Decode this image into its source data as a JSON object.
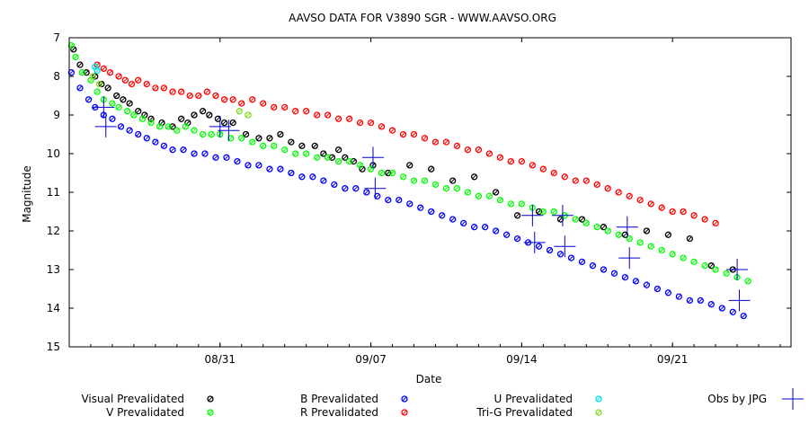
{
  "chart_data": {
    "type": "scatter",
    "title": "AAVSO DATA FOR V3890 SGR - WWW.AAVSO.ORG",
    "xlabel": "Date",
    "ylabel": "Magnitude",
    "x_unit": "day-of-year 2019",
    "xlim": [
      236,
      269.5
    ],
    "ylim": [
      7,
      15
    ],
    "y_inverted": true,
    "grid": false,
    "legend_position": "bottom",
    "x_ticks": [
      {
        "value": 243,
        "label": "08/31"
      },
      {
        "value": 250,
        "label": "09/07"
      },
      {
        "value": 257,
        "label": "09/14"
      },
      {
        "value": 264,
        "label": "09/21"
      }
    ],
    "y_ticks": [
      7,
      8,
      9,
      10,
      11,
      12,
      13,
      14,
      15
    ],
    "series": [
      {
        "name": "Visual Prevalidated",
        "color": "#000000",
        "marker": "circle",
        "points": [
          [
            236.2,
            7.3
          ],
          [
            236.5,
            7.7
          ],
          [
            236.8,
            7.9
          ],
          [
            237.2,
            8.0
          ],
          [
            237.5,
            8.2
          ],
          [
            237.8,
            8.3
          ],
          [
            238.2,
            8.5
          ],
          [
            238.5,
            8.6
          ],
          [
            238.8,
            8.7
          ],
          [
            239.2,
            8.9
          ],
          [
            239.5,
            9.0
          ],
          [
            239.8,
            9.1
          ],
          [
            240.3,
            9.2
          ],
          [
            240.8,
            9.3
          ],
          [
            241.2,
            9.1
          ],
          [
            241.5,
            9.2
          ],
          [
            241.8,
            9.0
          ],
          [
            242.2,
            8.9
          ],
          [
            242.5,
            9.0
          ],
          [
            242.9,
            9.1
          ],
          [
            243.2,
            9.2
          ],
          [
            243.6,
            9.2
          ],
          [
            244.2,
            9.5
          ],
          [
            244.8,
            9.6
          ],
          [
            245.3,
            9.6
          ],
          [
            245.8,
            9.5
          ],
          [
            246.3,
            9.7
          ],
          [
            246.8,
            9.8
          ],
          [
            247.4,
            9.8
          ],
          [
            247.8,
            10.0
          ],
          [
            248.2,
            10.1
          ],
          [
            248.5,
            9.9
          ],
          [
            248.8,
            10.1
          ],
          [
            249.2,
            10.2
          ],
          [
            249.6,
            10.4
          ],
          [
            250.1,
            10.3
          ],
          [
            250.8,
            10.5
          ],
          [
            251.8,
            10.3
          ],
          [
            252.8,
            10.4
          ],
          [
            253.8,
            10.7
          ],
          [
            254.8,
            10.6
          ],
          [
            255.8,
            11.0
          ],
          [
            256.8,
            11.6
          ],
          [
            257.8,
            11.5
          ],
          [
            258.8,
            11.7
          ],
          [
            259.8,
            11.7
          ],
          [
            260.8,
            11.9
          ],
          [
            261.8,
            12.1
          ],
          [
            262.8,
            12.0
          ],
          [
            263.8,
            12.1
          ],
          [
            264.8,
            12.2
          ],
          [
            265.8,
            12.9
          ],
          [
            266.8,
            13.0
          ]
        ]
      },
      {
        "name": "V Prevalidated",
        "color": "#00ff00",
        "marker": "circle",
        "points": [
          [
            236.1,
            7.2
          ],
          [
            236.3,
            7.5
          ],
          [
            236.6,
            7.9
          ],
          [
            237.0,
            8.1
          ],
          [
            237.3,
            8.4
          ],
          [
            237.6,
            8.6
          ],
          [
            238.0,
            8.7
          ],
          [
            238.3,
            8.8
          ],
          [
            238.7,
            8.9
          ],
          [
            239.0,
            9.0
          ],
          [
            239.4,
            9.1
          ],
          [
            239.8,
            9.2
          ],
          [
            240.2,
            9.3
          ],
          [
            240.6,
            9.3
          ],
          [
            241.0,
            9.4
          ],
          [
            241.4,
            9.3
          ],
          [
            241.8,
            9.4
          ],
          [
            242.2,
            9.5
          ],
          [
            242.6,
            9.5
          ],
          [
            243.0,
            9.5
          ],
          [
            243.5,
            9.6
          ],
          [
            244.0,
            9.6
          ],
          [
            244.5,
            9.7
          ],
          [
            245.0,
            9.8
          ],
          [
            245.5,
            9.8
          ],
          [
            246.0,
            9.9
          ],
          [
            246.5,
            10.0
          ],
          [
            247.0,
            10.0
          ],
          [
            247.5,
            10.1
          ],
          [
            248.0,
            10.1
          ],
          [
            248.5,
            10.2
          ],
          [
            249.0,
            10.2
          ],
          [
            249.5,
            10.3
          ],
          [
            250.0,
            10.4
          ],
          [
            250.5,
            10.5
          ],
          [
            251.0,
            10.5
          ],
          [
            251.5,
            10.6
          ],
          [
            252.0,
            10.7
          ],
          [
            252.5,
            10.7
          ],
          [
            253.0,
            10.8
          ],
          [
            253.5,
            10.9
          ],
          [
            254.0,
            10.9
          ],
          [
            254.5,
            11.0
          ],
          [
            255.0,
            11.1
          ],
          [
            255.5,
            11.1
          ],
          [
            256.0,
            11.2
          ],
          [
            256.5,
            11.3
          ],
          [
            257.0,
            11.3
          ],
          [
            257.5,
            11.4
          ],
          [
            258.0,
            11.5
          ],
          [
            258.5,
            11.5
          ],
          [
            259.0,
            11.6
          ],
          [
            259.5,
            11.7
          ],
          [
            260.0,
            11.8
          ],
          [
            260.5,
            11.9
          ],
          [
            261.0,
            12.0
          ],
          [
            261.5,
            12.1
          ],
          [
            262.0,
            12.2
          ],
          [
            262.5,
            12.3
          ],
          [
            263.0,
            12.4
          ],
          [
            263.5,
            12.5
          ],
          [
            264.0,
            12.6
          ],
          [
            264.5,
            12.7
          ],
          [
            265.0,
            12.8
          ],
          [
            265.5,
            12.9
          ],
          [
            266.0,
            13.0
          ],
          [
            266.5,
            13.1
          ],
          [
            267.0,
            13.2
          ],
          [
            267.5,
            13.3
          ]
        ]
      },
      {
        "name": "B Prevalidated",
        "color": "#0000ff",
        "marker": "circle",
        "points": [
          [
            236.1,
            7.9
          ],
          [
            236.5,
            8.3
          ],
          [
            236.9,
            8.6
          ],
          [
            237.2,
            8.8
          ],
          [
            237.6,
            9.0
          ],
          [
            238.0,
            9.1
          ],
          [
            238.4,
            9.3
          ],
          [
            238.8,
            9.4
          ],
          [
            239.2,
            9.5
          ],
          [
            239.6,
            9.6
          ],
          [
            240.0,
            9.7
          ],
          [
            240.4,
            9.8
          ],
          [
            240.8,
            9.9
          ],
          [
            241.3,
            9.9
          ],
          [
            241.8,
            10.0
          ],
          [
            242.3,
            10.0
          ],
          [
            242.8,
            10.1
          ],
          [
            243.3,
            10.1
          ],
          [
            243.8,
            10.2
          ],
          [
            244.3,
            10.3
          ],
          [
            244.8,
            10.3
          ],
          [
            245.3,
            10.4
          ],
          [
            245.8,
            10.4
          ],
          [
            246.3,
            10.5
          ],
          [
            246.8,
            10.6
          ],
          [
            247.3,
            10.6
          ],
          [
            247.8,
            10.7
          ],
          [
            248.3,
            10.8
          ],
          [
            248.8,
            10.9
          ],
          [
            249.3,
            10.9
          ],
          [
            249.8,
            11.0
          ],
          [
            250.3,
            11.1
          ],
          [
            250.8,
            11.2
          ],
          [
            251.3,
            11.2
          ],
          [
            251.8,
            11.3
          ],
          [
            252.3,
            11.4
          ],
          [
            252.8,
            11.5
          ],
          [
            253.3,
            11.6
          ],
          [
            253.8,
            11.7
          ],
          [
            254.3,
            11.8
          ],
          [
            254.8,
            11.9
          ],
          [
            255.3,
            11.9
          ],
          [
            255.8,
            12.0
          ],
          [
            256.3,
            12.1
          ],
          [
            256.8,
            12.2
          ],
          [
            257.3,
            12.3
          ],
          [
            257.8,
            12.4
          ],
          [
            258.3,
            12.5
          ],
          [
            258.8,
            12.6
          ],
          [
            259.3,
            12.7
          ],
          [
            259.8,
            12.8
          ],
          [
            260.3,
            12.9
          ],
          [
            260.8,
            13.0
          ],
          [
            261.3,
            13.1
          ],
          [
            261.8,
            13.2
          ],
          [
            262.3,
            13.3
          ],
          [
            262.8,
            13.4
          ],
          [
            263.3,
            13.5
          ],
          [
            263.8,
            13.6
          ],
          [
            264.3,
            13.7
          ],
          [
            264.8,
            13.8
          ],
          [
            265.3,
            13.8
          ],
          [
            265.8,
            13.9
          ],
          [
            266.3,
            14.0
          ],
          [
            266.8,
            14.1
          ],
          [
            267.3,
            14.2
          ]
        ]
      },
      {
        "name": "R Prevalidated",
        "color": "#ff0000",
        "marker": "circle",
        "points": [
          [
            237.3,
            7.7
          ],
          [
            237.6,
            7.8
          ],
          [
            237.9,
            7.9
          ],
          [
            238.3,
            8.0
          ],
          [
            238.6,
            8.1
          ],
          [
            238.9,
            8.2
          ],
          [
            239.2,
            8.1
          ],
          [
            239.6,
            8.2
          ],
          [
            240.0,
            8.3
          ],
          [
            240.4,
            8.3
          ],
          [
            240.8,
            8.4
          ],
          [
            241.2,
            8.4
          ],
          [
            241.6,
            8.5
          ],
          [
            242.0,
            8.5
          ],
          [
            242.4,
            8.4
          ],
          [
            242.8,
            8.5
          ],
          [
            243.2,
            8.6
          ],
          [
            243.6,
            8.6
          ],
          [
            244.0,
            8.7
          ],
          [
            244.5,
            8.6
          ],
          [
            245.0,
            8.7
          ],
          [
            245.5,
            8.8
          ],
          [
            246.0,
            8.8
          ],
          [
            246.5,
            8.9
          ],
          [
            247.0,
            8.9
          ],
          [
            247.5,
            9.0
          ],
          [
            248.0,
            9.0
          ],
          [
            248.5,
            9.1
          ],
          [
            249.0,
            9.1
          ],
          [
            249.5,
            9.2
          ],
          [
            250.0,
            9.2
          ],
          [
            250.5,
            9.3
          ],
          [
            251.0,
            9.4
          ],
          [
            251.5,
            9.5
          ],
          [
            252.0,
            9.5
          ],
          [
            252.5,
            9.6
          ],
          [
            253.0,
            9.7
          ],
          [
            253.5,
            9.7
          ],
          [
            254.0,
            9.8
          ],
          [
            254.5,
            9.9
          ],
          [
            255.0,
            9.9
          ],
          [
            255.5,
            10.0
          ],
          [
            256.0,
            10.1
          ],
          [
            256.5,
            10.2
          ],
          [
            257.0,
            10.2
          ],
          [
            257.5,
            10.3
          ],
          [
            258.0,
            10.4
          ],
          [
            258.5,
            10.5
          ],
          [
            259.0,
            10.6
          ],
          [
            259.5,
            10.7
          ],
          [
            260.0,
            10.7
          ],
          [
            260.5,
            10.8
          ],
          [
            261.0,
            10.9
          ],
          [
            261.5,
            11.0
          ],
          [
            262.0,
            11.1
          ],
          [
            262.5,
            11.2
          ],
          [
            263.0,
            11.3
          ],
          [
            263.5,
            11.4
          ],
          [
            264.0,
            11.5
          ],
          [
            264.5,
            11.5
          ],
          [
            265.0,
            11.6
          ],
          [
            265.5,
            11.7
          ],
          [
            266.0,
            11.8
          ]
        ]
      },
      {
        "name": "U Prevalidated",
        "color": "#00e0e0",
        "marker": "circle",
        "points": [
          [
            237.2,
            7.75
          ],
          [
            237.3,
            7.85
          ]
        ]
      },
      {
        "name": "Tri-G Prevalidated",
        "color": "#80e020",
        "marker": "circle",
        "points": [
          [
            237.1,
            8.0
          ],
          [
            237.4,
            8.2
          ],
          [
            243.9,
            8.9
          ],
          [
            244.3,
            9.0
          ]
        ]
      },
      {
        "name": "Obs by JPG",
        "color": "#0000cc",
        "marker": "plus",
        "points": [
          [
            237.6,
            8.8
          ],
          [
            237.7,
            9.3
          ],
          [
            243.0,
            9.3
          ],
          [
            243.4,
            9.4
          ],
          [
            250.1,
            10.1
          ],
          [
            250.2,
            10.9
          ],
          [
            257.5,
            11.6
          ],
          [
            257.6,
            12.3
          ],
          [
            258.9,
            11.6
          ],
          [
            259.0,
            12.4
          ],
          [
            261.9,
            11.9
          ],
          [
            262.0,
            12.7
          ],
          [
            267.0,
            13.0
          ],
          [
            267.1,
            13.8
          ]
        ]
      }
    ]
  },
  "legend": {
    "items": [
      {
        "label": "Visual Prevalidated",
        "color": "#000000",
        "marker": "circle"
      },
      {
        "label": "B Prevalidated",
        "color": "#0000ff",
        "marker": "circle"
      },
      {
        "label": "U Prevalidated",
        "color": "#00e0e0",
        "marker": "circle"
      },
      {
        "label": "Obs by JPG",
        "color": "#0000cc",
        "marker": "plus"
      },
      {
        "label": "V Prevalidated",
        "color": "#00ff00",
        "marker": "circle"
      },
      {
        "label": "R Prevalidated",
        "color": "#ff0000",
        "marker": "circle"
      },
      {
        "label": "Tri-G Prevalidated",
        "color": "#80e020",
        "marker": "circle"
      }
    ]
  }
}
